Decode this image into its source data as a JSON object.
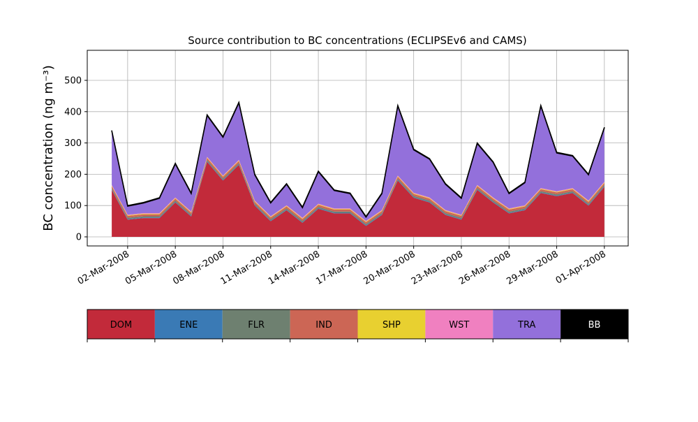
{
  "chart_data": {
    "type": "stacked_area",
    "title": "Source contribution to BC concentrations (ECLIPSEv6 and CAMS)",
    "y_label": "BC concentration (ng m⁻³)",
    "x": [
      "2008-03-01",
      "2008-03-02",
      "2008-03-03",
      "2008-03-04",
      "2008-03-05",
      "2008-03-06",
      "2008-03-07",
      "2008-03-08",
      "2008-03-09",
      "2008-03-10",
      "2008-03-11",
      "2008-03-12",
      "2008-03-13",
      "2008-03-14",
      "2008-03-15",
      "2008-03-16",
      "2008-03-17",
      "2008-03-18",
      "2008-03-19",
      "2008-03-20",
      "2008-03-21",
      "2008-03-22",
      "2008-03-23",
      "2008-03-24",
      "2008-03-25",
      "2008-03-26",
      "2008-03-27",
      "2008-03-28",
      "2008-03-29",
      "2008-03-30",
      "2008-03-31",
      "2008-04-01"
    ],
    "series": [
      {
        "name": "DOM",
        "color": "#c22a3a",
        "values": [
          150,
          55,
          60,
          60,
          110,
          65,
          240,
          180,
          230,
          100,
          50,
          85,
          45,
          90,
          75,
          75,
          35,
          70,
          180,
          125,
          110,
          70,
          55,
          150,
          110,
          75,
          85,
          140,
          130,
          140,
          100,
          160
        ]
      },
      {
        "name": "ENE",
        "color": "#3a7ab5",
        "values": [
          2,
          2,
          2,
          2,
          2,
          2,
          2,
          2,
          2,
          2,
          2,
          2,
          2,
          2,
          2,
          2,
          2,
          2,
          2,
          2,
          2,
          2,
          2,
          2,
          2,
          2,
          2,
          2,
          2,
          2,
          2,
          2
        ]
      },
      {
        "name": "FLR",
        "color": "#6e8070",
        "values": [
          4,
          4,
          4,
          4,
          4,
          4,
          4,
          4,
          4,
          4,
          4,
          4,
          4,
          4,
          4,
          4,
          4,
          4,
          4,
          4,
          4,
          4,
          4,
          4,
          4,
          4,
          4,
          4,
          4,
          4,
          4,
          4
        ]
      },
      {
        "name": "IND",
        "color": "#cc6655",
        "values": [
          6,
          6,
          6,
          6,
          6,
          6,
          6,
          6,
          6,
          6,
          6,
          6,
          6,
          6,
          6,
          6,
          6,
          6,
          6,
          6,
          6,
          6,
          6,
          6,
          6,
          6,
          6,
          6,
          6,
          6,
          6,
          6
        ]
      },
      {
        "name": "SHP",
        "color": "#e8d030",
        "values": [
          2,
          2,
          2,
          2,
          2,
          2,
          2,
          2,
          2,
          2,
          2,
          2,
          2,
          2,
          2,
          2,
          2,
          2,
          2,
          2,
          2,
          2,
          2,
          2,
          2,
          2,
          2,
          2,
          2,
          2,
          2,
          2
        ]
      },
      {
        "name": "WST",
        "color": "#f080c0",
        "values": [
          2,
          2,
          2,
          2,
          2,
          2,
          2,
          2,
          2,
          2,
          2,
          2,
          2,
          2,
          2,
          2,
          2,
          2,
          2,
          2,
          2,
          2,
          2,
          2,
          2,
          2,
          2,
          2,
          2,
          2,
          2,
          2
        ]
      },
      {
        "name": "TRA",
        "color": "#9370db",
        "values": [
          172,
          27,
          32,
          47,
          107,
          57,
          132,
          122,
          182,
          82,
          42,
          67,
          32,
          102,
          57,
          47,
          12,
          52,
          222,
          137,
          122,
          82,
          52,
          132,
          112,
          47,
          72,
          262,
          122,
          102,
          82,
          172
        ]
      },
      {
        "name": "BB",
        "color": "#000000",
        "values": [
          2,
          2,
          2,
          2,
          2,
          2,
          2,
          2,
          2,
          2,
          2,
          2,
          2,
          2,
          2,
          2,
          2,
          2,
          2,
          2,
          2,
          2,
          2,
          2,
          2,
          2,
          2,
          2,
          2,
          2,
          2,
          2
        ]
      }
    ],
    "xlim": [
      "2008-02-28T11:00",
      "2008-04-02T12:00"
    ],
    "xticks": [
      {
        "value": "2008-03-02",
        "label": "02-Mar-2008"
      },
      {
        "value": "2008-03-05",
        "label": "05-Mar-2008"
      },
      {
        "value": "2008-03-08",
        "label": "08-Mar-2008"
      },
      {
        "value": "2008-03-11",
        "label": "11-Mar-2008"
      },
      {
        "value": "2008-03-14",
        "label": "14-Mar-2008"
      },
      {
        "value": "2008-03-17",
        "label": "17-Mar-2008"
      },
      {
        "value": "2008-03-20",
        "label": "20-Mar-2008"
      },
      {
        "value": "2008-03-23",
        "label": "23-Mar-2008"
      },
      {
        "value": "2008-03-26",
        "label": "26-Mar-2008"
      },
      {
        "value": "2008-03-29",
        "label": "29-Mar-2008"
      },
      {
        "value": "2008-04-01",
        "label": "01-Apr-2008"
      }
    ],
    "ylim": [
      -29,
      596
    ],
    "yticks": [
      0,
      100,
      200,
      300,
      400,
      500
    ],
    "grid": true
  }
}
